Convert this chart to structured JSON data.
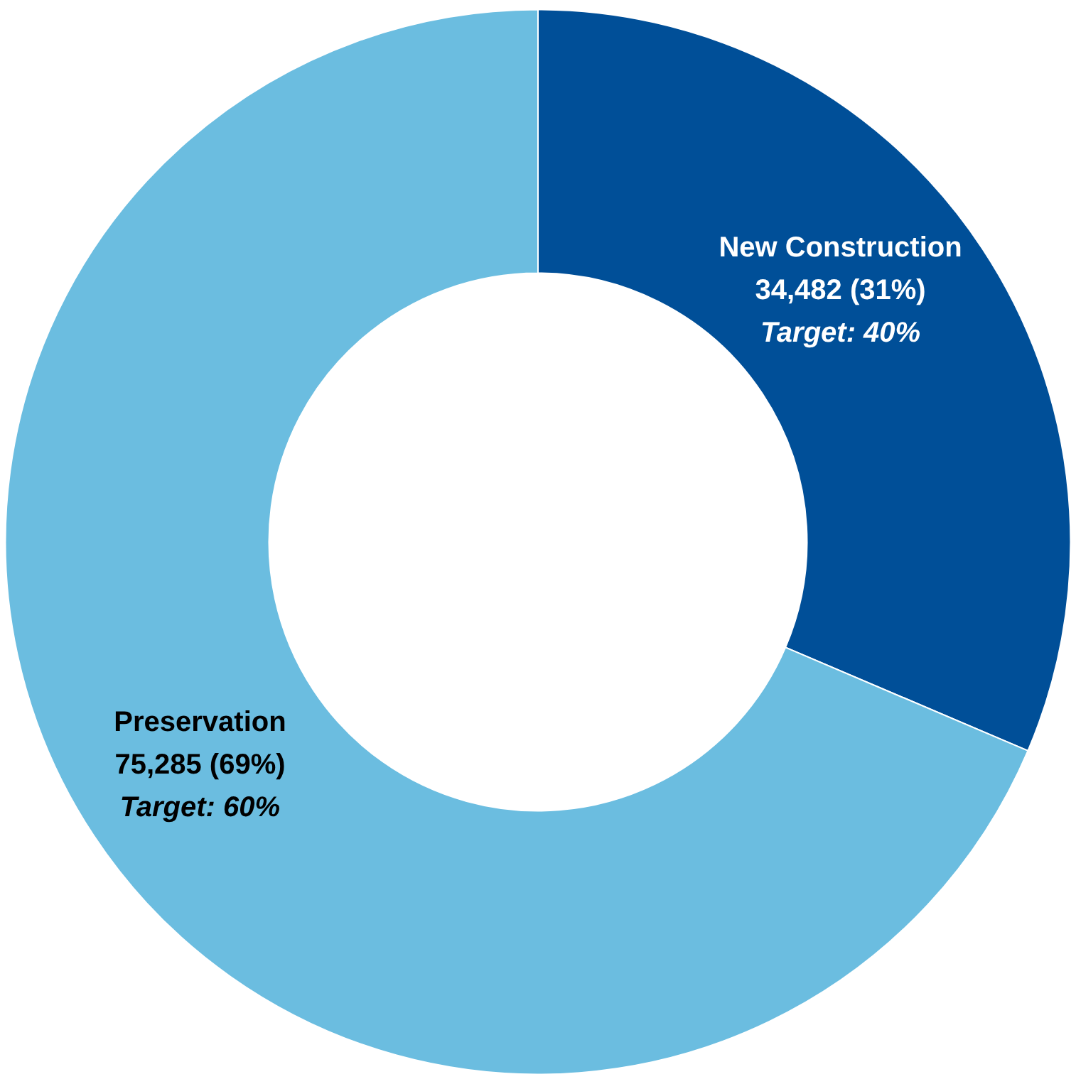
{
  "chart_data": {
    "type": "donut",
    "categories": [
      "New Construction",
      "Preservation"
    ],
    "values": [
      34482,
      75285
    ],
    "colors": [
      "#004f98",
      "#6bbde0"
    ],
    "value_labels": [
      "34,482 (31%)",
      "75,285 (69%)"
    ],
    "annotations": [
      "Target: 40%",
      "Target: 60%"
    ],
    "legend": false
  }
}
